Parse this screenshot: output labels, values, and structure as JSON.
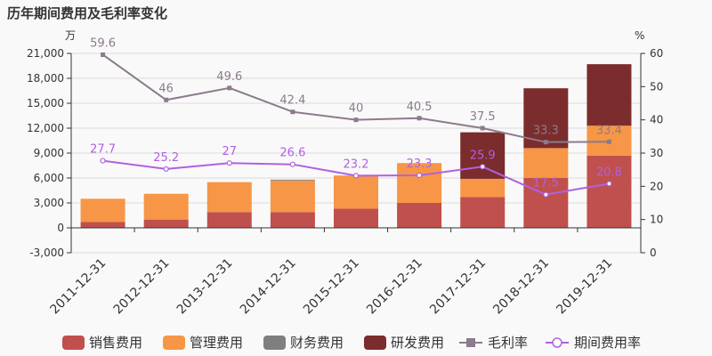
{
  "chart_data": {
    "type": "bar",
    "title": "历年期间费用及毛利率变化",
    "left_unit": "万",
    "right_unit": "%",
    "categories": [
      "2011-12-31",
      "2012-12-31",
      "2013-12-31",
      "2014-12-31",
      "2015-12-31",
      "2016-12-31",
      "2017-12-31",
      "2018-12-31",
      "2019-12-31"
    ],
    "left_axis": {
      "min": -3000,
      "max": 21000,
      "ticks": [
        "-3,000",
        "0",
        "3,000",
        "6,000",
        "9,000",
        "12,000",
        "15,000",
        "18,000",
        "21,000"
      ]
    },
    "right_axis": {
      "min": 0,
      "max": 60,
      "ticks": [
        "0",
        "10",
        "20",
        "30",
        "40",
        "50",
        "60"
      ]
    },
    "bar_series": [
      {
        "name": "销售费用",
        "color": "#c0504d",
        "values": [
          700,
          1000,
          1900,
          1900,
          2300,
          3000,
          3700,
          6000,
          8700
        ]
      },
      {
        "name": "管理费用",
        "color": "#f79646",
        "values": [
          2800,
          3100,
          3600,
          3800,
          4000,
          4800,
          2200,
          3600,
          3600
        ]
      },
      {
        "name": "财务费用",
        "color": "#7f7f7f",
        "values": [
          0,
          0,
          0,
          100,
          0,
          0,
          0,
          0,
          0
        ]
      },
      {
        "name": "研发费用",
        "color": "#7b2c2c",
        "values": [
          0,
          0,
          0,
          0,
          0,
          0,
          5600,
          7200,
          7400
        ]
      }
    ],
    "line_series": [
      {
        "name": "毛利率",
        "color": "#8b7b8b",
        "values": [
          59.6,
          46,
          49.6,
          42.4,
          40,
          40.5,
          37.5,
          33.3,
          33.4
        ],
        "labels": [
          "59.6",
          "46",
          "49.6",
          "42.4",
          "40",
          "40.5",
          "37.5",
          "33.3",
          "33.4"
        ]
      },
      {
        "name": "期间费用率",
        "color": "#b061e0",
        "values": [
          27.7,
          25.2,
          27,
          26.6,
          23.2,
          23.3,
          25.9,
          17.5,
          20.8
        ],
        "labels": [
          "27.7",
          "25.2",
          "27",
          "26.6",
          "23.2",
          "23.3",
          "25.9",
          "17.5",
          "20.8"
        ]
      }
    ]
  }
}
